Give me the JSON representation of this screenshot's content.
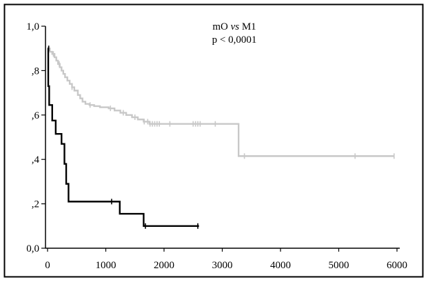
{
  "chart_data": {
    "type": "line",
    "subtype": "kaplan-meier",
    "title_prefix": "mO",
    "title_vs": "vs",
    "title_suffix": "M1",
    "subtitle": "p <  0,0001",
    "xlabel": "",
    "ylabel": "",
    "xlim": [
      0,
      6000
    ],
    "ylim": [
      0.0,
      1.0
    ],
    "x_ticks": [
      {
        "value": 0,
        "label": "0"
      },
      {
        "value": 1000,
        "label": "1000"
      },
      {
        "value": 2000,
        "label": "2000"
      },
      {
        "value": 3000,
        "label": "3000"
      },
      {
        "value": 4000,
        "label": "4000"
      },
      {
        "value": 5000,
        "label": "5000"
      },
      {
        "value": 6000,
        "label": "6000"
      }
    ],
    "y_ticks": [
      {
        "value": 0.0,
        "label": "0,0"
      },
      {
        "value": 0.2,
        "label": ",2"
      },
      {
        "value": 0.4,
        "label": ",4"
      },
      {
        "value": 0.6,
        "label": ",6"
      },
      {
        "value": 0.8,
        "label": ",8"
      },
      {
        "value": 1.0,
        "label": "1,0"
      }
    ],
    "grid": false,
    "legend": "none",
    "series": [
      {
        "color": "#c8c8c8",
        "steps": [
          [
            0,
            0.9
          ],
          [
            40,
            0.885
          ],
          [
            80,
            0.875
          ],
          [
            120,
            0.86
          ],
          [
            150,
            0.845
          ],
          [
            180,
            0.83
          ],
          [
            210,
            0.815
          ],
          [
            240,
            0.8
          ],
          [
            270,
            0.785
          ],
          [
            300,
            0.77
          ],
          [
            340,
            0.755
          ],
          [
            380,
            0.74
          ],
          [
            420,
            0.725
          ],
          [
            460,
            0.71
          ],
          [
            520,
            0.69
          ],
          [
            560,
            0.675
          ],
          [
            600,
            0.66
          ],
          [
            650,
            0.65
          ],
          [
            720,
            0.645
          ],
          [
            800,
            0.64
          ],
          [
            900,
            0.635
          ],
          [
            1050,
            0.63
          ],
          [
            1150,
            0.62
          ],
          [
            1250,
            0.61
          ],
          [
            1350,
            0.6
          ],
          [
            1450,
            0.59
          ],
          [
            1550,
            0.58
          ],
          [
            1650,
            0.57
          ],
          [
            1750,
            0.56
          ],
          [
            3280,
            0.415
          ]
        ],
        "end_x": 5950,
        "censored": [
          [
            15,
            0.9
          ],
          [
            100,
            0.875
          ],
          [
            200,
            0.83
          ],
          [
            420,
            0.725
          ],
          [
            730,
            0.645
          ],
          [
            1080,
            0.63
          ],
          [
            1300,
            0.61
          ],
          [
            1500,
            0.59
          ],
          [
            1660,
            0.57
          ],
          [
            1720,
            0.57
          ],
          [
            1760,
            0.56
          ],
          [
            1800,
            0.56
          ],
          [
            1840,
            0.56
          ],
          [
            1880,
            0.56
          ],
          [
            1920,
            0.56
          ],
          [
            2100,
            0.56
          ],
          [
            2500,
            0.56
          ],
          [
            2540,
            0.56
          ],
          [
            2580,
            0.56
          ],
          [
            2620,
            0.56
          ],
          [
            2880,
            0.56
          ],
          [
            3380,
            0.415
          ],
          [
            5280,
            0.415
          ],
          [
            5950,
            0.415
          ]
        ]
      },
      {
        "color": "#000000",
        "steps": [
          [
            0,
            0.9
          ],
          [
            12,
            0.73
          ],
          [
            28,
            0.645
          ],
          [
            80,
            0.575
          ],
          [
            140,
            0.515
          ],
          [
            240,
            0.47
          ],
          [
            290,
            0.38
          ],
          [
            320,
            0.29
          ],
          [
            360,
            0.21
          ],
          [
            1240,
            0.155
          ],
          [
            1650,
            0.1
          ]
        ],
        "end_x": 2600,
        "censored": [
          [
            20,
            0.9
          ],
          [
            1100,
            0.21
          ],
          [
            1680,
            0.1
          ],
          [
            2580,
            0.1
          ]
        ]
      }
    ]
  }
}
